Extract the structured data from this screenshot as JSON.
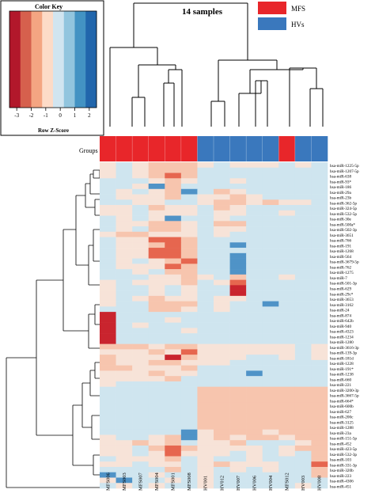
{
  "chart_data": {
    "type": "heatmap",
    "title": "14 samples",
    "color_key": {
      "title": "Color Key",
      "xlabel": "Row Z-Score",
      "ticks": [
        "-3",
        "-2",
        "-1",
        "0",
        "1",
        "2"
      ],
      "palette": [
        "#b2182b",
        "#d6604d",
        "#f4a582",
        "#fddbc7",
        "#d1e5f0",
        "#92c5de",
        "#4393c3",
        "#2166ac"
      ]
    },
    "groups_label": "Groups",
    "legend": [
      {
        "label": "MFS",
        "color": "#e8262a"
      },
      {
        "label": "HVs",
        "color": "#3a78bd"
      }
    ],
    "columns": [
      "MFS006",
      "MFS003",
      "MFS007",
      "MFS004",
      "MFS001",
      "MFS008",
      "HV001",
      "HV012",
      "HV007",
      "HV006",
      "HV004",
      "MFS012",
      "HV003",
      "HV008"
    ],
    "column_groups": [
      "MFS",
      "MFS",
      "MFS",
      "MFS",
      "MFS",
      "MFS",
      "HVs",
      "HVs",
      "HVs",
      "HVs",
      "HVs",
      "MFS",
      "HVs",
      "HVs"
    ],
    "rows": [
      "hsa-miR-1225-5p",
      "hsa-miR-1207-5p",
      "hsa-miR-638",
      "hsa-miR-93*",
      "hsa-miR-186",
      "hsa-miR-29a",
      "hsa-miR-23b",
      "hsa-miR-362-5p",
      "hsa-miR-324-5p",
      "hsa-miR-532-5p",
      "hsa-miR-30e",
      "hsa-miR-500a*",
      "hsa-miR-502-3p",
      "hsa-miR-3651",
      "hsa-miR-766",
      "hsa-miR-191",
      "hsa-miR-1268",
      "hsa-miR-564",
      "hsa-miR-3679-5p",
      "hsa-miR-762",
      "hsa-miR-1275",
      "hsa-miR-7",
      "hsa-miR-501-3p",
      "hsa-miR-629",
      "hsa-miR-29c*",
      "hsa-miR-3653",
      "hsa-miR-3162",
      "hsa-miR-24",
      "hsa-miR-874",
      "hsa-miR-642b",
      "hsa-miR-940",
      "hsa-miR-4323",
      "hsa-miR-1234",
      "hsa-miR-1280",
      "hsa-miR-3616-3p",
      "hsa-miR-139-3p",
      "hsa-miR-181d",
      "hsa-miR-1228",
      "hsa-miR-191*",
      "hsa-miR-1238",
      "hsa-miR-660",
      "hsa-miR-221",
      "hsa-miR-3200-3p",
      "hsa-miR-3667-5p",
      "hsa-miR-664*",
      "hsa-miR-600b",
      "hsa-miR-627",
      "hsa-miR-200c",
      "hsa-miR-3125",
      "hsa-miR-1288",
      "hsa-miR-23a",
      "hsa-miR-151-5p",
      "hsa-miR-452",
      "hsa-miR-423-5p",
      "hsa-miR-532-3p",
      "hsa-miR-103",
      "hsa-miR-331-3p",
      "hsa-miR-320b",
      "hsa-miR-223",
      "hsa-miR-4306",
      "hsa-miR-451"
    ],
    "values": [
      [
        0,
        -1,
        0,
        1,
        1,
        1,
        0,
        -1,
        0,
        0,
        0,
        -1,
        0,
        -1
      ],
      [
        0,
        -1,
        0,
        1,
        1,
        1,
        -1,
        -1,
        -1,
        -1,
        -1,
        -1,
        -1,
        -1
      ],
      [
        0,
        -1,
        0,
        1,
        2,
        1,
        -1,
        -1,
        -1,
        -1,
        -1,
        -1,
        -1,
        -1
      ],
      [
        -1,
        -1,
        -1,
        0,
        1,
        0,
        -1,
        -1,
        0,
        -1,
        -1,
        -1,
        -1,
        -1
      ],
      [
        -1,
        -1,
        0,
        -2,
        1,
        -1,
        -1,
        -1,
        -1,
        -1,
        -1,
        -1,
        -1,
        -1
      ],
      [
        -1,
        0,
        -1,
        0,
        1,
        -2,
        -1,
        1,
        0,
        -1,
        -1,
        -1,
        -1,
        -1
      ],
      [
        -1,
        0,
        0,
        0,
        1,
        -1,
        0,
        0,
        1,
        0,
        -1,
        -1,
        -1,
        -1
      ],
      [
        -1,
        -1,
        0,
        0,
        -1,
        -1,
        0,
        1,
        1,
        0,
        1,
        0,
        0,
        -1
      ],
      [
        0,
        0,
        -1,
        1,
        0,
        0,
        -1,
        1,
        0,
        -1,
        -1,
        -1,
        -1,
        -1
      ],
      [
        0,
        0,
        -1,
        0,
        0,
        0,
        -1,
        0,
        0,
        -1,
        -1,
        0,
        -1,
        -1
      ],
      [
        -1,
        0,
        -1,
        0,
        -2,
        -1,
        -1,
        0,
        -1,
        -1,
        -1,
        -1,
        -1,
        -1
      ],
      [
        -1,
        0,
        0,
        1,
        1,
        0,
        -1,
        1,
        1,
        -1,
        -1,
        -1,
        -1,
        -1
      ],
      [
        -1,
        0,
        -1,
        1,
        1,
        0,
        -1,
        0,
        0,
        -1,
        -1,
        -1,
        -1,
        -1
      ],
      [
        0,
        1,
        1,
        0,
        0,
        0,
        -1,
        0,
        -1,
        -1,
        -1,
        -1,
        -1,
        -1
      ],
      [
        -1,
        0,
        0,
        2,
        2,
        1,
        -1,
        -1,
        -1,
        -1,
        -1,
        -1,
        -1,
        -1
      ],
      [
        -1,
        0,
        0,
        1,
        2,
        1,
        -1,
        -1,
        -2,
        -1,
        -1,
        -1,
        -1,
        -1
      ],
      [
        -1,
        0,
        0,
        2,
        2,
        1,
        -1,
        -1,
        -1,
        -1,
        -1,
        -1,
        -1,
        -1
      ],
      [
        -1,
        0,
        0,
        2,
        2,
        1,
        -1,
        -1,
        -2,
        -1,
        -1,
        -1,
        -1,
        -1
      ],
      [
        -1,
        0,
        -1,
        0,
        1,
        2,
        -1,
        -1,
        -2,
        -1,
        -1,
        -1,
        -1,
        -1
      ],
      [
        -1,
        0,
        0,
        0,
        2,
        1,
        -1,
        -1,
        -2,
        -1,
        -1,
        -1,
        -1,
        -1
      ],
      [
        -1,
        -1,
        0,
        -1,
        1,
        1,
        -1,
        -1,
        -2,
        -1,
        -1,
        -1,
        -1,
        -1
      ],
      [
        -1,
        -1,
        -1,
        0,
        0,
        1,
        0,
        -1,
        1,
        -1,
        -1,
        0,
        -1,
        -1
      ],
      [
        0,
        -1,
        0,
        0,
        0,
        1,
        -1,
        0,
        2,
        -1,
        -1,
        -1,
        -1,
        -1
      ],
      [
        0,
        -1,
        -1,
        0,
        -1,
        0,
        -1,
        -1,
        3,
        -1,
        -1,
        -1,
        -1,
        -1
      ],
      [
        0,
        -1,
        -1,
        0,
        -1,
        0,
        -1,
        -1,
        3,
        -1,
        -1,
        -1,
        -1,
        -1
      ],
      [
        0,
        -1,
        0,
        1,
        0,
        0,
        -1,
        0,
        0,
        -1,
        -1,
        -1,
        -1,
        -1
      ],
      [
        0,
        -1,
        -1,
        1,
        1,
        1,
        -1,
        0,
        -1,
        -1,
        -2,
        -1,
        -1,
        -1
      ],
      [
        -1,
        -1,
        -1,
        1,
        1,
        0,
        -1,
        0,
        -1,
        -1,
        -1,
        -1,
        -1,
        -1
      ],
      [
        3,
        -1,
        -1,
        -1,
        -1,
        -1,
        -1,
        -1,
        -1,
        -1,
        -1,
        -1,
        -1,
        -1
      ],
      [
        3,
        -1,
        -1,
        -1,
        0,
        -1,
        -1,
        -1,
        -1,
        -1,
        -1,
        -1,
        -1,
        -1
      ],
      [
        3,
        -1,
        0,
        -1,
        -1,
        -1,
        -1,
        -1,
        -1,
        -1,
        -1,
        -1,
        -1,
        -1
      ],
      [
        3,
        -1,
        -1,
        -1,
        -1,
        0,
        -1,
        -1,
        -1,
        -1,
        -1,
        -1,
        -1,
        -1
      ],
      [
        3,
        -1,
        -1,
        -1,
        -1,
        -1,
        -1,
        -1,
        -1,
        -1,
        -1,
        -1,
        -1,
        -1
      ],
      [
        3,
        -1,
        -1,
        -1,
        -1,
        -1,
        -1,
        -1,
        -1,
        -1,
        -1,
        -1,
        -1,
        -1
      ],
      [
        1,
        1,
        1,
        0,
        1,
        1,
        0,
        0,
        0,
        0,
        0,
        0,
        -1,
        0
      ],
      [
        0,
        0,
        0,
        1,
        0,
        2,
        0,
        0,
        0,
        0,
        0,
        0,
        -1,
        0
      ],
      [
        1,
        0,
        0,
        0,
        3,
        1,
        0,
        0,
        0,
        -1,
        -1,
        0,
        -1,
        0
      ],
      [
        1,
        0,
        0,
        1,
        1,
        0,
        0,
        0,
        -1,
        -1,
        -1,
        -1,
        -1,
        -1
      ],
      [
        1,
        1,
        0,
        0,
        0,
        1,
        -1,
        -1,
        -1,
        -1,
        -1,
        -1,
        -1,
        -1
      ],
      [
        0,
        0,
        0,
        1,
        0,
        0,
        -1,
        -1,
        -1,
        -2,
        -1,
        -1,
        -1,
        -1
      ],
      [
        0,
        0,
        0,
        0,
        1,
        -1,
        -1,
        -1,
        -1,
        -1,
        -1,
        -1,
        -1,
        -1
      ],
      [
        0,
        -1,
        -1,
        -1,
        -1,
        -1,
        -1,
        -1,
        -1,
        -1,
        -1,
        -1,
        -1,
        -1
      ],
      [
        -1,
        -1,
        -1,
        -1,
        -1,
        -1,
        1,
        1,
        1,
        1,
        1,
        1,
        1,
        1
      ],
      [
        -1,
        -1,
        -1,
        -1,
        -1,
        -1,
        1,
        1,
        1,
        1,
        1,
        1,
        1,
        1
      ],
      [
        -1,
        -1,
        -1,
        -1,
        -1,
        -1,
        1,
        1,
        1,
        1,
        1,
        1,
        1,
        1
      ],
      [
        -1,
        -1,
        -1,
        -1,
        -1,
        -1,
        1,
        1,
        1,
        1,
        1,
        1,
        1,
        1
      ],
      [
        -1,
        -1,
        -1,
        -1,
        -1,
        -1,
        1,
        1,
        1,
        1,
        1,
        1,
        1,
        1
      ],
      [
        -1,
        -1,
        -1,
        -1,
        -1,
        -1,
        1,
        1,
        1,
        1,
        1,
        1,
        1,
        1
      ],
      [
        -1,
        -1,
        -1,
        -1,
        -1,
        -1,
        1,
        1,
        1,
        1,
        1,
        1,
        1,
        1
      ],
      [
        -1,
        -1,
        -1,
        -1,
        -1,
        -1,
        1,
        1,
        1,
        1,
        1,
        1,
        1,
        1
      ],
      [
        -1,
        -1,
        -1,
        -1,
        -1,
        -2,
        0,
        1,
        1,
        1,
        0,
        1,
        1,
        1
      ],
      [
        0,
        -1,
        -1,
        0,
        1,
        -2,
        0,
        1,
        0,
        1,
        1,
        0,
        1,
        1
      ],
      [
        0,
        0,
        1,
        0,
        1,
        -1,
        0,
        0,
        1,
        -1,
        -1,
        -1,
        0,
        1
      ],
      [
        0,
        0,
        -1,
        1,
        2,
        1,
        0,
        0,
        0,
        0,
        -1,
        0,
        1,
        1
      ],
      [
        0,
        0,
        -1,
        0,
        2,
        0,
        0,
        0,
        -1,
        0,
        -1,
        0,
        -1,
        1
      ],
      [
        -1,
        0,
        0,
        0,
        1,
        -1,
        0,
        -1,
        -1,
        0,
        -1,
        -1,
        -1,
        1
      ],
      [
        0,
        0,
        -1,
        0,
        0,
        -1,
        0,
        1,
        0,
        0,
        0,
        -1,
        -1,
        2
      ],
      [
        -1,
        -1,
        -1,
        -1,
        1,
        -1,
        0,
        -1,
        0,
        -1,
        0,
        -1,
        -1,
        1
      ],
      [
        -2,
        -1,
        -1,
        0,
        -1,
        -1,
        0,
        -1,
        -1,
        -1,
        -1,
        -1,
        -1,
        1
      ],
      [
        0,
        -2,
        -1,
        -1,
        0,
        -1,
        0,
        -1,
        -1,
        -1,
        -1,
        -1,
        -1,
        -1
      ],
      [
        -1,
        0,
        -1,
        0,
        -1,
        -1,
        0,
        -1,
        -1,
        -1,
        -1,
        -1,
        0,
        -1
      ]
    ]
  }
}
